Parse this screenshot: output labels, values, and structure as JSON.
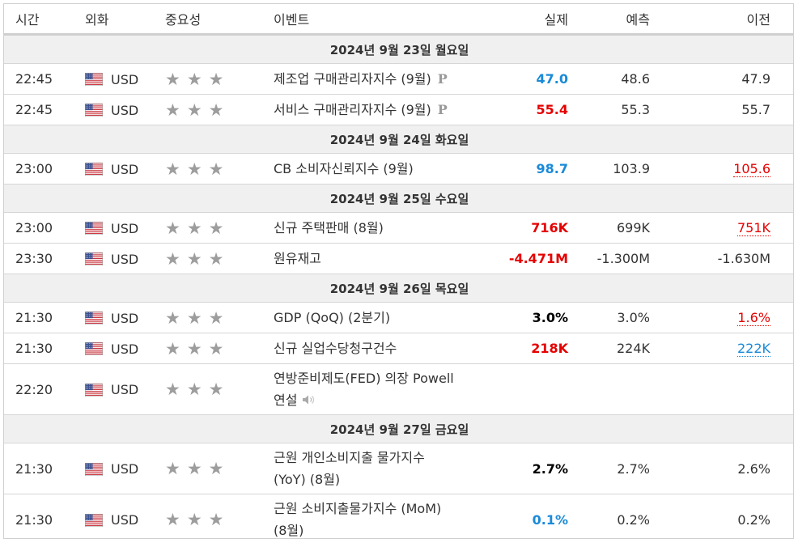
{
  "columns": {
    "time": "시간",
    "currency": "외화",
    "importance": "중요성",
    "event": "이벤트",
    "actual": "실제",
    "forecast": "예측",
    "previous": "이전"
  },
  "days": [
    {
      "label": "2024년 9월 23일 월요일",
      "events": [
        {
          "time": "22:45",
          "currency": "USD",
          "event": "제조업 구매관리자지수 (9월)",
          "prelim": "P",
          "actual": "47.0",
          "actual_color": "blue",
          "forecast": "48.6",
          "previous": "47.9",
          "previous_color": "plain"
        },
        {
          "time": "22:45",
          "currency": "USD",
          "event": "서비스 구매관리자지수 (9월)",
          "prelim": "P",
          "actual": "55.4",
          "actual_color": "red",
          "forecast": "55.3",
          "previous": "55.7",
          "previous_color": "plain"
        }
      ]
    },
    {
      "label": "2024년 9월 24일 화요일",
      "events": [
        {
          "time": "23:00",
          "currency": "USD",
          "event": "CB 소비자신뢰지수 (9월)",
          "actual": "98.7",
          "actual_color": "blue",
          "forecast": "103.9",
          "previous": "105.6",
          "previous_color": "red"
        }
      ]
    },
    {
      "label": "2024년 9월 25일 수요일",
      "events": [
        {
          "time": "23:00",
          "currency": "USD",
          "event": "신규 주택판매 (8월)",
          "actual": "716K",
          "actual_color": "red",
          "forecast": "699K",
          "previous": "751K",
          "previous_color": "red"
        },
        {
          "time": "23:30",
          "currency": "USD",
          "event": "원유재고",
          "actual": "-4.471M",
          "actual_color": "red",
          "forecast": "-1.300M",
          "previous": "-1.630M",
          "previous_color": "plain"
        }
      ]
    },
    {
      "label": "2024년 9월 26일 목요일",
      "events": [
        {
          "time": "21:30",
          "currency": "USD",
          "event": "GDP (QoQ) (2분기)",
          "actual": "3.0%",
          "actual_color": "black",
          "forecast": "3.0%",
          "previous": "1.6%",
          "previous_color": "red"
        },
        {
          "time": "21:30",
          "currency": "USD",
          "event": "신규 실업수당청구건수",
          "actual": "218K",
          "actual_color": "red",
          "forecast": "224K",
          "previous": "222K",
          "previous_color": "blue"
        },
        {
          "time": "22:20",
          "currency": "USD",
          "event_line1": "연방준비제도(FED) 의장 Powell",
          "event_line2": "연설",
          "speech": true,
          "actual": "",
          "forecast": "",
          "previous": ""
        }
      ]
    },
    {
      "label": "2024년 9월 27일 금요일",
      "events": [
        {
          "time": "21:30",
          "currency": "USD",
          "event_line1": "근원 개인소비지출 물가지수",
          "event_line2": "(YoY) (8월)",
          "actual": "2.7%",
          "actual_color": "black",
          "forecast": "2.7%",
          "previous": "2.6%",
          "previous_color": "plain"
        },
        {
          "time": "21:30",
          "currency": "USD",
          "event_line1": "근원 소비지출물가지수 (MoM)",
          "event_line2": "(8월)",
          "actual": "0.1%",
          "actual_color": "blue",
          "forecast": "0.2%",
          "previous": "0.2%",
          "previous_color": "plain"
        }
      ]
    }
  ],
  "importance_stars": 3,
  "icons": {
    "flag": "us-flag-icon",
    "star": "star-icon",
    "preliminary": "preliminary-p-icon",
    "speech": "speaker-icon"
  },
  "colors": {
    "blue": "#1a8ad8",
    "red": "#e50000",
    "star": "#9d9d9d",
    "day_bg": "#f0f0f0"
  }
}
